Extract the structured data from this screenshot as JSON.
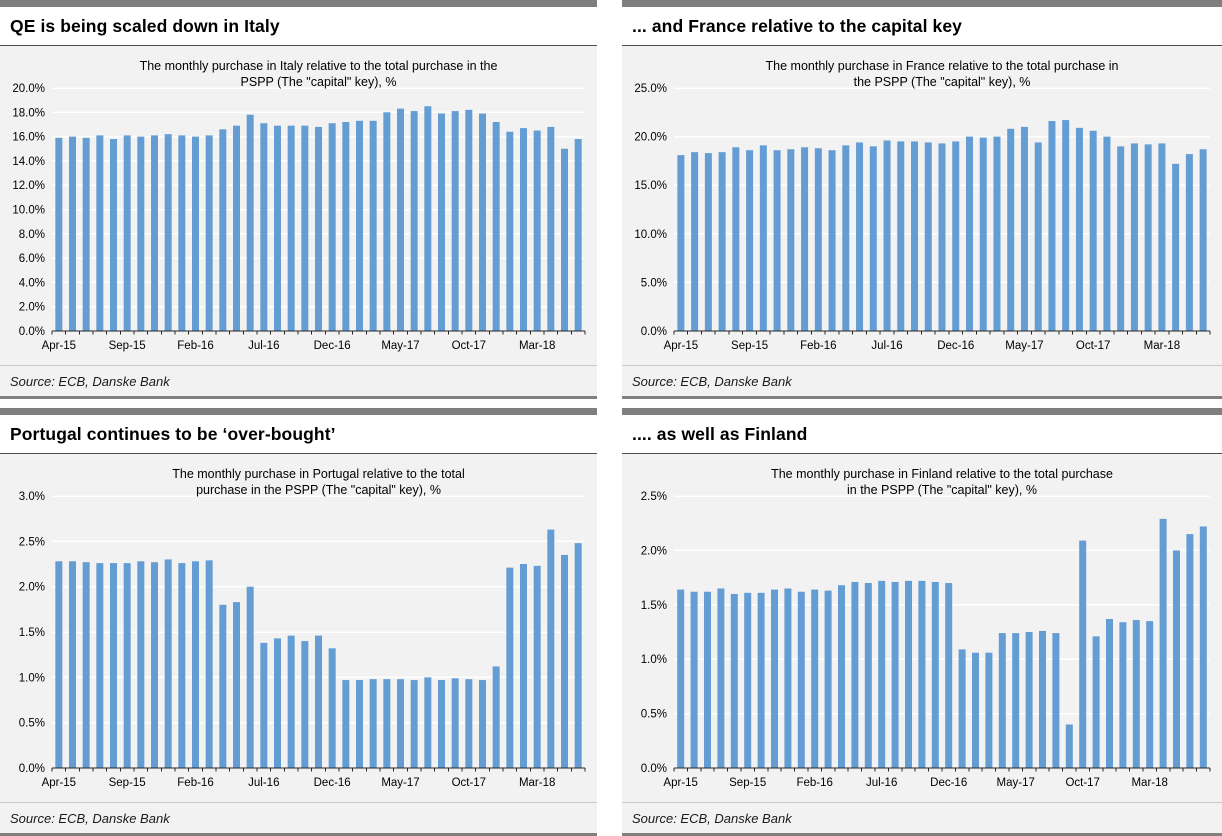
{
  "page": {
    "background": "#ffffff"
  },
  "colors": {
    "bar": "#649dd3",
    "chart_bg": "#f2f2f2",
    "gridline": "#ffffff",
    "axis": "#262626",
    "top_bar": "#7f7f7f",
    "bottom_border": "#808080",
    "header_rule": "#4d4d4d"
  },
  "panels": [
    {
      "title": "QE is being scaled down in Italy",
      "source": "Source: ECB, Danske Bank"
    },
    {
      "title": "... and France relative to the capital key",
      "source": "Source: ECB, Danske Bank"
    },
    {
      "title": "Portugal continues to be ‘over-bought’",
      "source": "Source: ECB, Danske Bank"
    },
    {
      "title": ".... as well as Finland",
      "source": "Source: ECB, Danske Bank"
    }
  ],
  "chart_data": [
    {
      "type": "bar",
      "title_lines": [
        "The monthly purchase in Italy relative to the total purchase in the",
        "PSPP (The \"capital\" key), %"
      ],
      "categories": [
        "Apr-15",
        "May-15",
        "Jun-15",
        "Jul-15",
        "Aug-15",
        "Sep-15",
        "Oct-15",
        "Nov-15",
        "Dec-15",
        "Jan-16",
        "Feb-16",
        "Mar-16",
        "Apr-16",
        "May-16",
        "Jun-16",
        "Jul-16",
        "Aug-16",
        "Sep-16",
        "Oct-16",
        "Nov-16",
        "Dec-16",
        "Jan-17",
        "Feb-17",
        "Mar-17",
        "Apr-17",
        "May-17",
        "Jun-17",
        "Jul-17",
        "Aug-17",
        "Sep-17",
        "Oct-17",
        "Nov-17",
        "Dec-17",
        "Jan-18",
        "Feb-18",
        "Mar-18",
        "Apr-18",
        "May-18",
        "Jun-18"
      ],
      "values": [
        15.9,
        16.0,
        15.9,
        16.1,
        15.8,
        16.1,
        16.0,
        16.1,
        16.2,
        16.1,
        16.0,
        16.1,
        16.6,
        16.9,
        17.8,
        17.1,
        16.9,
        16.9,
        16.9,
        16.8,
        17.1,
        17.2,
        17.3,
        17.3,
        18.0,
        18.3,
        18.1,
        18.5,
        17.9,
        18.1,
        18.2,
        17.9,
        17.2,
        16.4,
        16.7,
        16.5,
        16.8,
        15.0,
        15.8
      ],
      "ylim": [
        0,
        20
      ],
      "y_ticks": [
        {
          "v": 0,
          "label": "0.0%"
        },
        {
          "v": 2,
          "label": "2.0%"
        },
        {
          "v": 4,
          "label": "4.0%"
        },
        {
          "v": 6,
          "label": "6.0%"
        },
        {
          "v": 8,
          "label": "8.0%"
        },
        {
          "v": 10,
          "label": "10.0%"
        },
        {
          "v": 12,
          "label": "12.0%"
        },
        {
          "v": 14,
          "label": "14.0%"
        },
        {
          "v": 16,
          "label": "16.0%"
        },
        {
          "v": 18,
          "label": "18.0%"
        },
        {
          "v": 20,
          "label": "20.0%"
        }
      ],
      "x_ticks": [
        {
          "index": 0,
          "label": "Apr-15"
        },
        {
          "index": 5,
          "label": "Sep-15"
        },
        {
          "index": 10,
          "label": "Feb-16"
        },
        {
          "index": 15,
          "label": "Jul-16"
        },
        {
          "index": 20,
          "label": "Dec-16"
        },
        {
          "index": 25,
          "label": "May-17"
        },
        {
          "index": 30,
          "label": "Oct-17"
        },
        {
          "index": 35,
          "label": "Mar-18"
        }
      ],
      "grid": true,
      "legend": "none"
    },
    {
      "type": "bar",
      "title_lines": [
        "The monthly purchase in France relative to the total purchase in",
        "the PSPP (The \"capital\" key), %"
      ],
      "categories": [
        "Apr-15",
        "May-15",
        "Jun-15",
        "Jul-15",
        "Aug-15",
        "Sep-15",
        "Oct-15",
        "Nov-15",
        "Dec-15",
        "Jan-16",
        "Feb-16",
        "Mar-16",
        "Apr-16",
        "May-16",
        "Jun-16",
        "Jul-16",
        "Aug-16",
        "Sep-16",
        "Oct-16",
        "Nov-16",
        "Dec-16",
        "Jan-17",
        "Feb-17",
        "Mar-17",
        "Apr-17",
        "May-17",
        "Jun-17",
        "Jul-17",
        "Aug-17",
        "Sep-17",
        "Oct-17",
        "Nov-17",
        "Dec-17",
        "Jan-18",
        "Feb-18",
        "Mar-18",
        "Apr-18",
        "May-18",
        "Jun-18"
      ],
      "values": [
        18.1,
        18.4,
        18.3,
        18.4,
        18.9,
        18.6,
        19.1,
        18.6,
        18.7,
        18.9,
        18.8,
        18.6,
        19.1,
        19.4,
        19.0,
        19.6,
        19.5,
        19.5,
        19.4,
        19.3,
        19.5,
        20.0,
        19.9,
        20.0,
        20.8,
        21.0,
        19.4,
        21.6,
        21.7,
        20.9,
        20.6,
        20.0,
        19.0,
        19.3,
        19.2,
        19.3,
        17.2,
        18.2,
        18.7
      ],
      "ylim": [
        0,
        25
      ],
      "y_ticks": [
        {
          "v": 0,
          "label": "0.0%"
        },
        {
          "v": 5,
          "label": "5.0%"
        },
        {
          "v": 10,
          "label": "10.0%"
        },
        {
          "v": 15,
          "label": "15.0%"
        },
        {
          "v": 20,
          "label": "20.0%"
        },
        {
          "v": 25,
          "label": "25.0%"
        }
      ],
      "x_ticks": [
        {
          "index": 0,
          "label": "Apr-15"
        },
        {
          "index": 5,
          "label": "Sep-15"
        },
        {
          "index": 10,
          "label": "Feb-16"
        },
        {
          "index": 15,
          "label": "Jul-16"
        },
        {
          "index": 20,
          "label": "Dec-16"
        },
        {
          "index": 25,
          "label": "May-17"
        },
        {
          "index": 30,
          "label": "Oct-17"
        },
        {
          "index": 35,
          "label": "Mar-18"
        }
      ],
      "grid": true,
      "legend": "none"
    },
    {
      "type": "bar",
      "title_lines": [
        "The monthly purchase in Portugal relative to the total",
        "purchase in the PSPP (The \"capital\" key), %"
      ],
      "categories": [
        "Apr-15",
        "May-15",
        "Jun-15",
        "Jul-15",
        "Aug-15",
        "Sep-15",
        "Oct-15",
        "Nov-15",
        "Dec-15",
        "Jan-16",
        "Feb-16",
        "Mar-16",
        "Apr-16",
        "May-16",
        "Jun-16",
        "Jul-16",
        "Aug-16",
        "Sep-16",
        "Oct-16",
        "Nov-16",
        "Dec-16",
        "Jan-17",
        "Feb-17",
        "Mar-17",
        "Apr-17",
        "May-17",
        "Jun-17",
        "Jul-17",
        "Aug-17",
        "Sep-17",
        "Oct-17",
        "Nov-17",
        "Dec-17",
        "Jan-18",
        "Feb-18",
        "Mar-18",
        "Apr-18",
        "May-18",
        "Jun-18"
      ],
      "values": [
        2.28,
        2.28,
        2.27,
        2.26,
        2.26,
        2.26,
        2.28,
        2.27,
        2.3,
        2.26,
        2.28,
        2.29,
        1.8,
        1.83,
        2.0,
        1.38,
        1.43,
        1.46,
        1.4,
        1.46,
        1.32,
        0.97,
        0.97,
        0.98,
        0.98,
        0.98,
        0.97,
        1.0,
        0.97,
        0.99,
        0.98,
        0.97,
        1.12,
        2.21,
        2.25,
        2.23,
        2.63,
        2.35,
        2.48
      ],
      "ylim": [
        0,
        3
      ],
      "y_ticks": [
        {
          "v": 0,
          "label": "0.0%"
        },
        {
          "v": 0.5,
          "label": "0.5%"
        },
        {
          "v": 1,
          "label": "1.0%"
        },
        {
          "v": 1.5,
          "label": "1.5%"
        },
        {
          "v": 2,
          "label": "2.0%"
        },
        {
          "v": 2.5,
          "label": "2.5%"
        },
        {
          "v": 3,
          "label": "3.0%"
        }
      ],
      "x_ticks": [
        {
          "index": 0,
          "label": "Apr-15"
        },
        {
          "index": 5,
          "label": "Sep-15"
        },
        {
          "index": 10,
          "label": "Feb-16"
        },
        {
          "index": 15,
          "label": "Jul-16"
        },
        {
          "index": 20,
          "label": "Dec-16"
        },
        {
          "index": 25,
          "label": "May-17"
        },
        {
          "index": 30,
          "label": "Oct-17"
        },
        {
          "index": 35,
          "label": "Mar-18"
        }
      ],
      "grid": true,
      "legend": "none"
    },
    {
      "type": "bar",
      "title_lines": [
        "The monthly purchase in Finland relative to the total purchase",
        "in the PSPP (The \"capital\" key), %"
      ],
      "categories": [
        "Apr-15",
        "May-15",
        "Jun-15",
        "Jul-15",
        "Aug-15",
        "Sep-15",
        "Oct-15",
        "Nov-15",
        "Dec-15",
        "Jan-16",
        "Feb-16",
        "Mar-16",
        "Apr-16",
        "May-16",
        "Jun-16",
        "Jul-16",
        "Aug-16",
        "Sep-16",
        "Oct-16",
        "Nov-16",
        "Dec-16",
        "Jan-17",
        "Feb-17",
        "Mar-17",
        "Apr-17",
        "May-17",
        "Jun-17",
        "Jul-17",
        "Aug-17",
        "Sep-17",
        "Oct-17",
        "Nov-17",
        "Dec-17",
        "Jan-18",
        "Feb-18",
        "Mar-18",
        "Apr-18",
        "May-18",
        "Jun-18",
        "Jul-18"
      ],
      "values": [
        1.64,
        1.62,
        1.62,
        1.65,
        1.6,
        1.61,
        1.61,
        1.64,
        1.65,
        1.62,
        1.64,
        1.63,
        1.68,
        1.71,
        1.7,
        1.72,
        1.71,
        1.72,
        1.72,
        1.71,
        1.7,
        1.09,
        1.06,
        1.06,
        1.24,
        1.24,
        1.25,
        1.26,
        1.24,
        0.4,
        2.09,
        1.21,
        1.37,
        1.34,
        1.36,
        1.35,
        2.29,
        2.0,
        2.15,
        2.22
      ],
      "ylim": [
        0,
        2.5
      ],
      "y_ticks": [
        {
          "v": 0,
          "label": "0.0%"
        },
        {
          "v": 0.5,
          "label": "0.5%"
        },
        {
          "v": 1,
          "label": "1.0%"
        },
        {
          "v": 1.5,
          "label": "1.5%"
        },
        {
          "v": 2,
          "label": "2.0%"
        },
        {
          "v": 2.5,
          "label": "2.5%"
        }
      ],
      "x_ticks": [
        {
          "index": 0,
          "label": "Apr-15"
        },
        {
          "index": 5,
          "label": "Sep-15"
        },
        {
          "index": 10,
          "label": "Feb-16"
        },
        {
          "index": 15,
          "label": "Jul-16"
        },
        {
          "index": 20,
          "label": "Dec-16"
        },
        {
          "index": 25,
          "label": "May-17"
        },
        {
          "index": 30,
          "label": "Oct-17"
        },
        {
          "index": 35,
          "label": "Mar-18"
        }
      ],
      "grid": true,
      "legend": "none"
    }
  ]
}
